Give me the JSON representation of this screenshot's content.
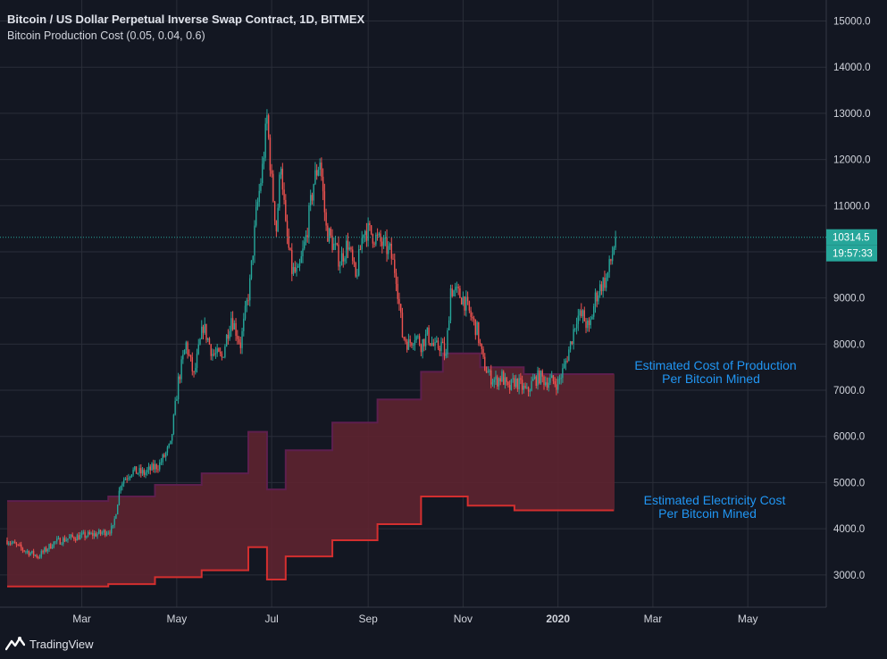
{
  "header": {
    "title": "Bitcoin / US Dollar Perpetual Inverse Swap Contract, 1D, BITMEX",
    "indicator": "Bitcoin Production Cost (0.05, 0.04, 0.6)"
  },
  "annotations": {
    "production_line1": "Estimated Cost of Production",
    "production_line2": "Per Bitcoin Mined",
    "electricity_line1": "Estimated Electricity Cost",
    "electricity_line2": "Per Bitcoin Mined"
  },
  "price_labels": {
    "last_price": "10314.5",
    "countdown": "19:57:33"
  },
  "branding": {
    "name": "TradingView",
    "icon": "tradingview-logo-icon"
  },
  "colors": {
    "background": "#131722",
    "grid": "#2a2e39",
    "up": "#26a69a",
    "down": "#ef5350",
    "band_fill": "#5e2330",
    "band_upper": "#5e1f4e",
    "band_lower": "#d32f2f",
    "annotation": "#2196f3",
    "last_price": "#26a69a"
  },
  "chart_data": {
    "type": "candlestick",
    "y_range": [
      2300,
      15300
    ],
    "y_ticks": [
      "3000.0",
      "4000.0",
      "5000.0",
      "6000.0",
      "7000.0",
      "8000.0",
      "9000.0",
      "10000.0",
      "11000.0",
      "12000.0",
      "13000.0",
      "14000.0",
      "15000.0"
    ],
    "x_ticks": [
      {
        "label": "Mar",
        "t": 48,
        "bold": false
      },
      {
        "label": "May",
        "t": 109,
        "bold": false
      },
      {
        "label": "Jul",
        "t": 170,
        "bold": false
      },
      {
        "label": "Sep",
        "t": 232,
        "bold": false
      },
      {
        "label": "Nov",
        "t": 293,
        "bold": false
      },
      {
        "label": "2020",
        "t": 354,
        "bold": true
      },
      {
        "label": "Mar",
        "t": 415,
        "bold": false
      },
      {
        "label": "May",
        "t": 476,
        "bold": false
      }
    ],
    "price_anchors": [
      [
        0,
        3750
      ],
      [
        10,
        3550
      ],
      [
        20,
        3400
      ],
      [
        30,
        3700
      ],
      [
        40,
        3800
      ],
      [
        50,
        3850
      ],
      [
        60,
        3900
      ],
      [
        68,
        4000
      ],
      [
        73,
        5000
      ],
      [
        80,
        5250
      ],
      [
        88,
        5200
      ],
      [
        98,
        5400
      ],
      [
        105,
        5800
      ],
      [
        110,
        7200
      ],
      [
        115,
        8000
      ],
      [
        120,
        7300
      ],
      [
        126,
        8400
      ],
      [
        132,
        7800
      ],
      [
        138,
        7700
      ],
      [
        144,
        8600
      ],
      [
        150,
        8000
      ],
      [
        156,
        9300
      ],
      [
        160,
        10800
      ],
      [
        164,
        11800
      ],
      [
        167,
        12900
      ],
      [
        170,
        11500
      ],
      [
        173,
        10500
      ],
      [
        176,
        12000
      ],
      [
        179,
        10500
      ],
      [
        183,
        9600
      ],
      [
        187,
        9500
      ],
      [
        192,
        10300
      ],
      [
        197,
        11500
      ],
      [
        201,
        12000
      ],
      [
        205,
        10500
      ],
      [
        209,
        10200
      ],
      [
        214,
        9800
      ],
      [
        219,
        10200
      ],
      [
        224,
        9400
      ],
      [
        229,
        10500
      ],
      [
        234,
        10400
      ],
      [
        240,
        10200
      ],
      [
        246,
        10000
      ],
      [
        250,
        9500
      ],
      [
        254,
        8200
      ],
      [
        258,
        8000
      ],
      [
        262,
        8200
      ],
      [
        266,
        8000
      ],
      [
        270,
        8200
      ],
      [
        275,
        7900
      ],
      [
        279,
        8000
      ],
      [
        282,
        7700
      ],
      [
        285,
        9200
      ],
      [
        289,
        9100
      ],
      [
        293,
        9000
      ],
      [
        298,
        8600
      ],
      [
        302,
        8300
      ],
      [
        306,
        7600
      ],
      [
        310,
        7300
      ],
      [
        314,
        7200
      ],
      [
        318,
        7300
      ],
      [
        322,
        7000
      ],
      [
        326,
        7200
      ],
      [
        330,
        7100
      ],
      [
        334,
        6950
      ],
      [
        338,
        7200
      ],
      [
        342,
        7300
      ],
      [
        346,
        7200
      ],
      [
        350,
        7200
      ],
      [
        354,
        7150
      ],
      [
        358,
        7500
      ],
      [
        362,
        8000
      ],
      [
        366,
        8600
      ],
      [
        370,
        8600
      ],
      [
        374,
        8300
      ],
      [
        378,
        9000
      ],
      [
        382,
        9300
      ],
      [
        385,
        9400
      ],
      [
        388,
        9800
      ],
      [
        391,
        10314
      ]
    ],
    "upper_band": [
      [
        0,
        4600
      ],
      [
        65,
        4600
      ],
      [
        65,
        4700
      ],
      [
        95,
        4700
      ],
      [
        95,
        4950
      ],
      [
        125,
        4950
      ],
      [
        125,
        5200
      ],
      [
        155,
        5200
      ],
      [
        155,
        6100
      ],
      [
        167,
        6100
      ],
      [
        167,
        4850
      ],
      [
        179,
        4850
      ],
      [
        179,
        5700
      ],
      [
        209,
        5700
      ],
      [
        209,
        6300
      ],
      [
        238,
        6300
      ],
      [
        238,
        6800
      ],
      [
        266,
        6800
      ],
      [
        266,
        7400
      ],
      [
        280,
        7400
      ],
      [
        280,
        7800
      ],
      [
        304,
        7800
      ],
      [
        304,
        7500
      ],
      [
        332,
        7500
      ],
      [
        332,
        7350
      ],
      [
        390,
        7350
      ]
    ],
    "lower_band": [
      [
        0,
        2750
      ],
      [
        65,
        2750
      ],
      [
        65,
        2800
      ],
      [
        95,
        2800
      ],
      [
        95,
        2950
      ],
      [
        125,
        2950
      ],
      [
        125,
        3100
      ],
      [
        155,
        3100
      ],
      [
        155,
        3600
      ],
      [
        167,
        3600
      ],
      [
        167,
        2900
      ],
      [
        179,
        2900
      ],
      [
        179,
        3400
      ],
      [
        209,
        3400
      ],
      [
        209,
        3750
      ],
      [
        238,
        3750
      ],
      [
        238,
        4100
      ],
      [
        266,
        4100
      ],
      [
        266,
        4700
      ],
      [
        296,
        4700
      ],
      [
        296,
        4500
      ],
      [
        326,
        4500
      ],
      [
        326,
        4400
      ],
      [
        390,
        4400
      ]
    ],
    "last_price": 10314.5,
    "countdown": "19:57:33"
  }
}
